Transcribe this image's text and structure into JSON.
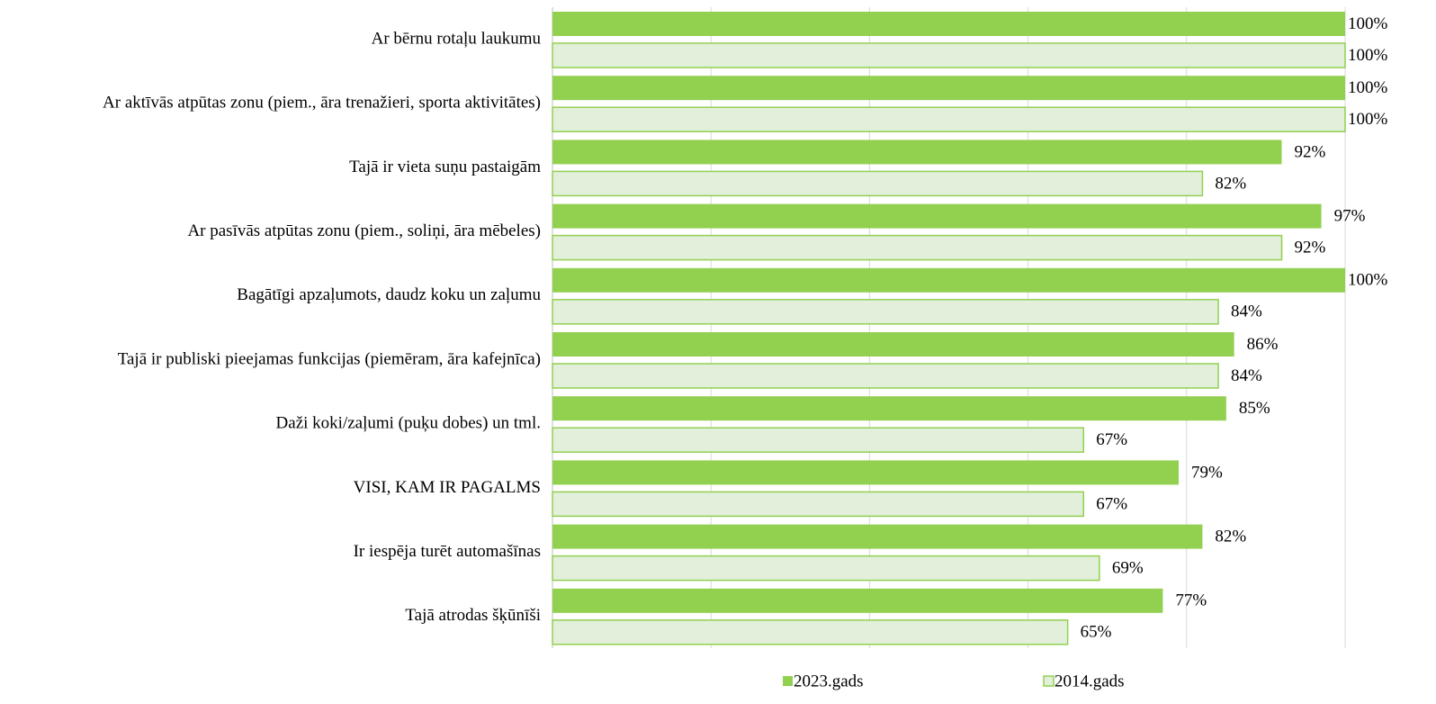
{
  "chart_data": {
    "type": "bar",
    "orientation": "horizontal",
    "categories": [
      "Ar bērnu rotaļu laukumu",
      "Ar aktīvās atpūtas zonu (piem., āra trenažieri, sporta aktivitātes)",
      "Tajā ir vieta suņu pastaigām",
      "Ar pasīvās atpūtas zonu (piem., soliņi, āra mēbeles)",
      "Bagātīgi apzaļumots, daudz koku un zaļumu",
      "Tajā ir publiski pieejamas funkcijas (piemēram, āra kafejnīca)",
      "Daži koki/zaļumi (puķu dobes) un tml.",
      "VISI, KAM IR PAGALMS",
      "Ir iespēja turēt automašīnas",
      "Tajā atrodas šķūnīši"
    ],
    "series": [
      {
        "name": "2023.gads",
        "color": "#92d050",
        "values": [
          100,
          100,
          92,
          97,
          100,
          86,
          85,
          79,
          82,
          77
        ],
        "value_labels": [
          "100%",
          "100%",
          "92%",
          "97%",
          "100%",
          "86%",
          "85%",
          "79%",
          "82%",
          "77%"
        ]
      },
      {
        "name": "2014.gads",
        "color": "#e2efda",
        "stroke": "#92d050",
        "values": [
          100,
          100,
          82,
          92,
          84,
          84,
          67,
          67,
          69,
          65
        ],
        "value_labels": [
          "100%",
          "100%",
          "82%",
          "92%",
          "84%",
          "84%",
          "67%",
          "67%",
          "69%",
          "65%"
        ]
      }
    ],
    "xlim": [
      0,
      100
    ],
    "xticks": [
      0,
      20,
      40,
      60,
      80,
      100
    ],
    "grid": true,
    "legend": "bottom"
  }
}
